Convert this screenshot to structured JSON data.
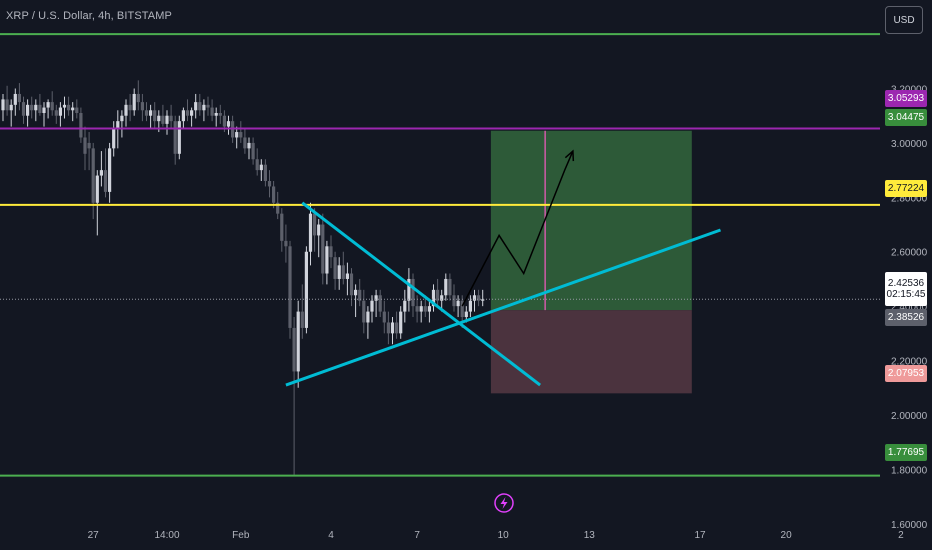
{
  "header": {
    "title": "XRP / U.S. Dollar, 4h, BITSTAMP",
    "currency_button": "USD"
  },
  "colors": {
    "background": "#131722",
    "up_candle": "#d1d4dc",
    "down_candle": "#5d606b",
    "support_resistance_green": "#4caf50",
    "purple_line": "#9c27b0",
    "yellow_line": "#ffeb3b",
    "triangle_lines": "#00bcd4",
    "target_zone": "#2e5e3a",
    "stop_zone": "#4e3540",
    "projection_arrow": "#000000"
  },
  "price_labels": {
    "p1": "3.05293",
    "p2": "3.04475",
    "p3": "2.77224",
    "current": "2.42536",
    "countdown": "02:15:45",
    "p4": "2.38526",
    "p5": "2.07953",
    "p6": "1.77695"
  },
  "icons": {
    "replay": "lightning-circle-icon"
  },
  "chart_data": {
    "type": "candlestick",
    "title": "XRP / U.S. Dollar, 4h, BITSTAMP",
    "y_axis": {
      "range": [
        1.5,
        3.45
      ],
      "ticks": [
        "3.20000",
        "3.00000",
        "2.80000",
        "2.60000",
        "2.40000",
        "2.20000",
        "2.00000",
        "1.80000",
        "1.60000"
      ],
      "tick_values": [
        3.2,
        3.0,
        2.8,
        2.6,
        2.4,
        2.2,
        2.0,
        1.8,
        1.6
      ]
    },
    "x_axis": {
      "ticks": [
        "27",
        "14:00",
        "Feb",
        "4",
        "7",
        "10",
        "13",
        "17",
        "20",
        "2"
      ],
      "tick_bar_index": [
        22,
        40,
        58,
        80,
        101,
        122,
        143,
        170,
        191,
        219
      ]
    },
    "horizontal_levels": [
      {
        "price": 3.4,
        "color": "#4caf50"
      },
      {
        "price": 3.05293,
        "color": "#9c27b0"
      },
      {
        "price": 2.77224,
        "color": "#ffeb3b"
      },
      {
        "price": 1.77695,
        "color": "#4caf50"
      }
    ],
    "current_price": 2.42536,
    "candles": [
      [
        3.12,
        3.18,
        3.08,
        3.16
      ],
      [
        3.16,
        3.21,
        3.1,
        3.12
      ],
      [
        3.12,
        3.16,
        3.06,
        3.14
      ],
      [
        3.14,
        3.2,
        3.1,
        3.18
      ],
      [
        3.18,
        3.22,
        3.12,
        3.15
      ],
      [
        3.15,
        3.17,
        3.07,
        3.1
      ],
      [
        3.1,
        3.16,
        3.06,
        3.14
      ],
      [
        3.14,
        3.17,
        3.09,
        3.12
      ],
      [
        3.12,
        3.16,
        3.08,
        3.14
      ],
      [
        3.14,
        3.18,
        3.1,
        3.11
      ],
      [
        3.11,
        3.15,
        3.06,
        3.13
      ],
      [
        3.13,
        3.16,
        3.09,
        3.15
      ],
      [
        3.15,
        3.19,
        3.1,
        3.12
      ],
      [
        3.12,
        3.14,
        3.07,
        3.1
      ],
      [
        3.1,
        3.15,
        3.06,
        3.13
      ],
      [
        3.13,
        3.17,
        3.09,
        3.14
      ],
      [
        3.14,
        3.17,
        3.1,
        3.12
      ],
      [
        3.12,
        3.15,
        3.08,
        3.13
      ],
      [
        3.13,
        3.16,
        3.09,
        3.11
      ],
      [
        3.11,
        3.13,
        3.0,
        3.02
      ],
      [
        3.02,
        3.06,
        2.9,
        2.96
      ],
      [
        3.0,
        3.04,
        2.9,
        2.98
      ],
      [
        2.98,
        3.0,
        2.72,
        2.78
      ],
      [
        2.78,
        2.9,
        2.66,
        2.88
      ],
      [
        2.88,
        2.97,
        2.84,
        2.9
      ],
      [
        2.9,
        2.98,
        2.8,
        2.82
      ],
      [
        2.82,
        3.0,
        2.78,
        2.98
      ],
      [
        2.98,
        3.08,
        2.95,
        3.05
      ],
      [
        3.05,
        3.12,
        2.98,
        3.08
      ],
      [
        3.08,
        3.12,
        3.02,
        3.1
      ],
      [
        3.1,
        3.16,
        3.06,
        3.14
      ],
      [
        3.14,
        3.18,
        3.08,
        3.12
      ],
      [
        3.12,
        3.2,
        3.1,
        3.18
      ],
      [
        3.18,
        3.23,
        3.12,
        3.15
      ],
      [
        3.15,
        3.18,
        3.08,
        3.12
      ],
      [
        3.12,
        3.15,
        3.08,
        3.1
      ],
      [
        3.1,
        3.14,
        3.05,
        3.12
      ],
      [
        3.12,
        3.15,
        3.05,
        3.08
      ],
      [
        3.08,
        3.12,
        3.04,
        3.1
      ],
      [
        3.1,
        3.14,
        3.06,
        3.07
      ],
      [
        3.07,
        3.12,
        3.03,
        3.1
      ],
      [
        3.1,
        3.14,
        3.05,
        3.08
      ],
      [
        3.08,
        3.1,
        2.92,
        2.96
      ],
      [
        2.96,
        3.1,
        2.94,
        3.08
      ],
      [
        3.08,
        3.13,
        3.05,
        3.12
      ],
      [
        3.12,
        3.16,
        3.08,
        3.1
      ],
      [
        3.1,
        3.13,
        3.06,
        3.12
      ],
      [
        3.12,
        3.18,
        3.09,
        3.15
      ],
      [
        3.15,
        3.18,
        3.1,
        3.12
      ],
      [
        3.12,
        3.16,
        3.08,
        3.14
      ],
      [
        3.14,
        3.17,
        3.1,
        3.13
      ],
      [
        3.13,
        3.16,
        3.08,
        3.1
      ],
      [
        3.1,
        3.13,
        3.06,
        3.11
      ],
      [
        3.11,
        3.14,
        3.07,
        3.1
      ],
      [
        3.1,
        3.12,
        3.04,
        3.06
      ],
      [
        3.06,
        3.1,
        3.03,
        3.08
      ],
      [
        3.08,
        3.1,
        3.0,
        3.02
      ],
      [
        3.02,
        3.06,
        2.98,
        3.04
      ],
      [
        3.04,
        3.08,
        3.0,
        3.02
      ],
      [
        3.02,
        3.05,
        2.96,
        2.98
      ],
      [
        2.98,
        3.02,
        2.94,
        3.0
      ],
      [
        3.0,
        3.02,
        2.92,
        2.94
      ],
      [
        2.94,
        2.98,
        2.88,
        2.9
      ],
      [
        2.9,
        2.94,
        2.86,
        2.92
      ],
      [
        2.92,
        2.94,
        2.84,
        2.86
      ],
      [
        2.86,
        2.9,
        2.8,
        2.84
      ],
      [
        2.84,
        2.86,
        2.76,
        2.78
      ],
      [
        2.78,
        2.82,
        2.72,
        2.74
      ],
      [
        2.74,
        2.76,
        2.6,
        2.64
      ],
      [
        2.64,
        2.7,
        2.56,
        2.62
      ],
      [
        2.62,
        2.64,
        2.28,
        2.32
      ],
      [
        2.32,
        2.36,
        1.78,
        2.16
      ],
      [
        2.16,
        2.42,
        2.1,
        2.38
      ],
      [
        2.38,
        2.48,
        2.28,
        2.32
      ],
      [
        2.32,
        2.62,
        2.3,
        2.6
      ],
      [
        2.6,
        2.78,
        2.55,
        2.74
      ],
      [
        2.74,
        2.76,
        2.6,
        2.66
      ],
      [
        2.66,
        2.72,
        2.58,
        2.7
      ],
      [
        2.7,
        2.74,
        2.48,
        2.52
      ],
      [
        2.52,
        2.64,
        2.48,
        2.62
      ],
      [
        2.62,
        2.66,
        2.54,
        2.58
      ],
      [
        2.58,
        2.6,
        2.46,
        2.5
      ],
      [
        2.5,
        2.58,
        2.46,
        2.55
      ],
      [
        2.55,
        2.6,
        2.48,
        2.5
      ],
      [
        2.5,
        2.56,
        2.44,
        2.52
      ],
      [
        2.52,
        2.54,
        2.4,
        2.44
      ],
      [
        2.44,
        2.48,
        2.36,
        2.46
      ],
      [
        2.46,
        2.5,
        2.4,
        2.42
      ],
      [
        2.42,
        2.46,
        2.3,
        2.34
      ],
      [
        2.34,
        2.4,
        2.28,
        2.38
      ],
      [
        2.38,
        2.44,
        2.34,
        2.42
      ],
      [
        2.42,
        2.46,
        2.36,
        2.44
      ],
      [
        2.44,
        2.46,
        2.36,
        2.38
      ],
      [
        2.38,
        2.42,
        2.3,
        2.34
      ],
      [
        2.34,
        2.38,
        2.26,
        2.3
      ],
      [
        2.3,
        2.36,
        2.26,
        2.34
      ],
      [
        2.34,
        2.38,
        2.28,
        2.3
      ],
      [
        2.3,
        2.4,
        2.28,
        2.38
      ],
      [
        2.38,
        2.46,
        2.34,
        2.42
      ],
      [
        2.42,
        2.54,
        2.38,
        2.5
      ],
      [
        2.5,
        2.52,
        2.36,
        2.4
      ],
      [
        2.4,
        2.44,
        2.34,
        2.38
      ],
      [
        2.38,
        2.42,
        2.34,
        2.4
      ],
      [
        2.4,
        2.44,
        2.36,
        2.38
      ],
      [
        2.38,
        2.42,
        2.34,
        2.4
      ],
      [
        2.4,
        2.48,
        2.38,
        2.46
      ],
      [
        2.46,
        2.5,
        2.4,
        2.42
      ],
      [
        2.42,
        2.46,
        2.38,
        2.44
      ],
      [
        2.44,
        2.52,
        2.42,
        2.5
      ],
      [
        2.5,
        2.52,
        2.42,
        2.44
      ],
      [
        2.44,
        2.48,
        2.38,
        2.4
      ],
      [
        2.4,
        2.44,
        2.36,
        2.42
      ],
      [
        2.42,
        2.44,
        2.32,
        2.36
      ],
      [
        2.36,
        2.4,
        2.34,
        2.38
      ],
      [
        2.38,
        2.44,
        2.36,
        2.42
      ],
      [
        2.42,
        2.46,
        2.38,
        2.44
      ],
      [
        2.44,
        2.46,
        2.4,
        2.42
      ],
      [
        2.42,
        2.46,
        2.4,
        2.425
      ]
    ],
    "position": {
      "entry": 2.38526,
      "target": 3.04475,
      "stop": 2.07953,
      "start_bar": 119,
      "end_bar": 168
    },
    "triangle": {
      "upper": [
        [
          73,
          2.78
        ],
        [
          131,
          2.11
        ]
      ],
      "lower": [
        [
          69,
          2.11
        ],
        [
          175,
          2.68
        ]
      ]
    },
    "projection_path": [
      [
        112,
        2.4
      ],
      [
        121,
        2.66
      ],
      [
        127,
        2.52
      ],
      [
        137,
        2.9
      ],
      [
        139,
        2.97
      ]
    ]
  }
}
